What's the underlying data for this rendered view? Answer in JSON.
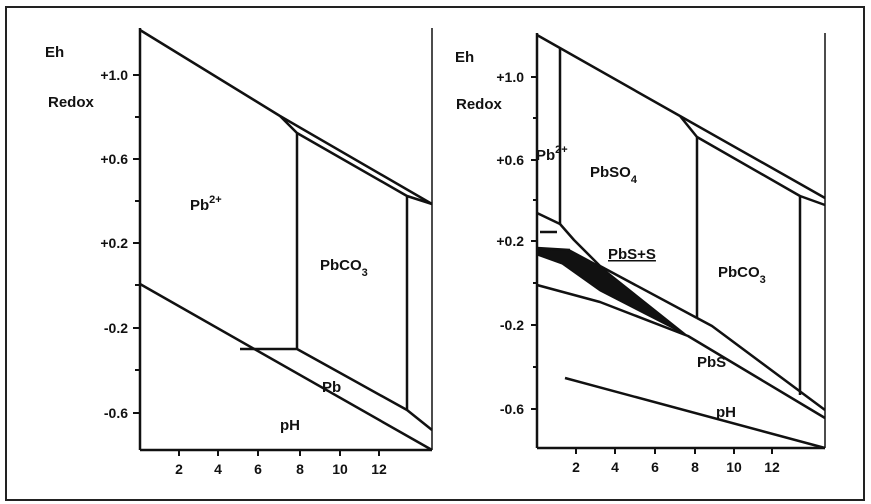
{
  "colors": {
    "ink": "#111111",
    "paper": "#ffffff",
    "frame": "#222222"
  },
  "left": {
    "eh_label": "Eh",
    "redox_label": "Redox",
    "y_ticks": [
      "+1.0",
      "+0.6",
      "+0.2",
      "-0.2",
      "-0.6"
    ],
    "x_ticks": [
      "2",
      "4",
      "6",
      "8",
      "10",
      "12"
    ],
    "fields": {
      "pb2_base": "Pb",
      "pb2_sup": "2+",
      "pbco3_base": "PbCO",
      "pbco3_sub": "3",
      "pb": "Pb",
      "ph": "pH"
    }
  },
  "right": {
    "eh_label": "Eh",
    "redox_label": "Redox",
    "y_ticks": [
      "+1.0",
      "+0.6",
      "+0.2",
      "-0.2",
      "-0.6"
    ],
    "x_ticks": [
      "2",
      "4",
      "6",
      "8",
      "10",
      "12"
    ],
    "fields": {
      "pb2_base": "Pb",
      "pb2_sup": "2+",
      "pbso4_base": "PbSO",
      "pbso4_sub": "4",
      "pbs_s": "PbS+S",
      "pbco3_base": "PbCO",
      "pbco3_sub": "3",
      "pbs": "PbS",
      "ph": "pH"
    }
  }
}
